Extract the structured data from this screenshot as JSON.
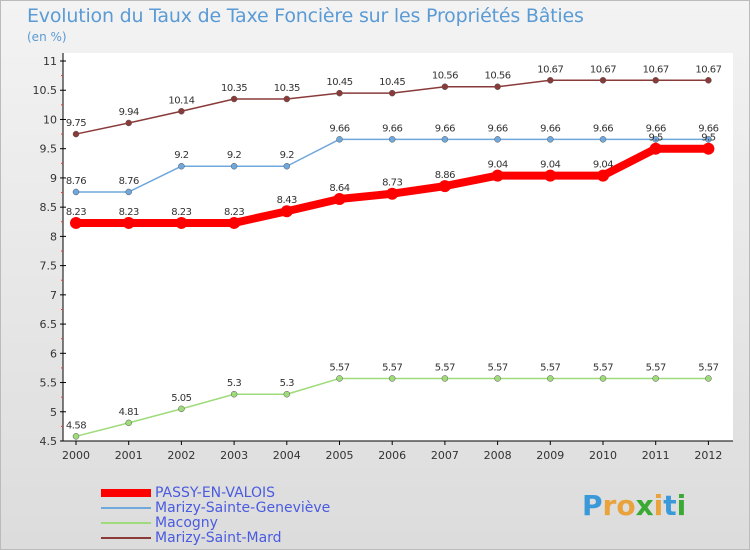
{
  "title": "Evolution du Taux de Taxe Foncière sur les Propriétés Bâties",
  "unit": "(en %)",
  "brand": {
    "letters": [
      "P",
      "r",
      "o",
      "x",
      "i",
      "t",
      "i"
    ],
    "colors": [
      "#3a9ad9",
      "#e8a33d",
      "#e8a33d",
      "#3aaa35",
      "#e8a33d",
      "#3a9ad9",
      "#3aaa35"
    ]
  },
  "chart_data": {
    "type": "line",
    "title": "Evolution du Taux de Taxe Foncière sur les Propriétés Bâties",
    "ylabel": "(en %)",
    "xlabel": "",
    "x": [
      "2000",
      "2001",
      "2002",
      "2003",
      "2004",
      "2005",
      "2006",
      "2007",
      "2008",
      "2009",
      "2010",
      "2011",
      "2012"
    ],
    "ylim": [
      4.5,
      11
    ],
    "yticks": [
      "4.5",
      "5",
      "5.5",
      "6",
      "6.5",
      "7",
      "7.5",
      "8",
      "8.5",
      "9",
      "9.5",
      "10",
      "10.5",
      "11"
    ],
    "series": [
      {
        "name": "PASSY-EN-VALOIS",
        "color": "#ff0000",
        "values": [
          8.23,
          8.23,
          8.23,
          8.23,
          8.43,
          8.64,
          8.73,
          8.86,
          9.04,
          9.04,
          9.04,
          9.5,
          9.5
        ],
        "labels": [
          "8.23",
          "8.23",
          "8.23",
          "8.23",
          "8.43",
          "8.64",
          "8.73",
          "8.86",
          "9.04",
          "9.04",
          "9.04",
          "9.5",
          "9.5"
        ]
      },
      {
        "name": "Marizy-Sainte-Geneviève",
        "color": "#6fa8dc",
        "values": [
          8.76,
          8.76,
          9.2,
          9.2,
          9.2,
          9.66,
          9.66,
          9.66,
          9.66,
          9.66,
          9.66,
          9.66,
          9.66
        ],
        "labels": [
          "8.76",
          "8.76",
          "9.2",
          "9.2",
          "9.2",
          "9.66",
          "9.66",
          "9.66",
          "9.66",
          "9.66",
          "9.66",
          "9.66",
          "9.66"
        ]
      },
      {
        "name": "Macogny",
        "color": "#9fdb7a",
        "values": [
          4.58,
          4.81,
          5.05,
          5.3,
          5.3,
          5.57,
          5.57,
          5.57,
          5.57,
          5.57,
          5.57,
          5.57,
          5.57
        ],
        "labels": [
          "4.58",
          "4.81",
          "5.05",
          "5.3",
          "5.3",
          "5.57",
          "5.57",
          "5.57",
          "5.57",
          "5.57",
          "5.57",
          "5.57",
          "5.57"
        ]
      },
      {
        "name": "Marizy-Saint-Mard",
        "color": "#8b3a3a",
        "values": [
          9.75,
          9.94,
          10.14,
          10.35,
          10.35,
          10.45,
          10.45,
          10.56,
          10.56,
          10.67,
          10.67,
          10.67,
          10.67
        ],
        "labels": [
          "9.75",
          "9.94",
          "10.14",
          "10.35",
          "10.35",
          "10.45",
          "10.45",
          "10.56",
          "10.56",
          "10.67",
          "10.67",
          "10.67",
          "10.67"
        ]
      }
    ],
    "legend_position": "bottom-left",
    "grid": false
  }
}
